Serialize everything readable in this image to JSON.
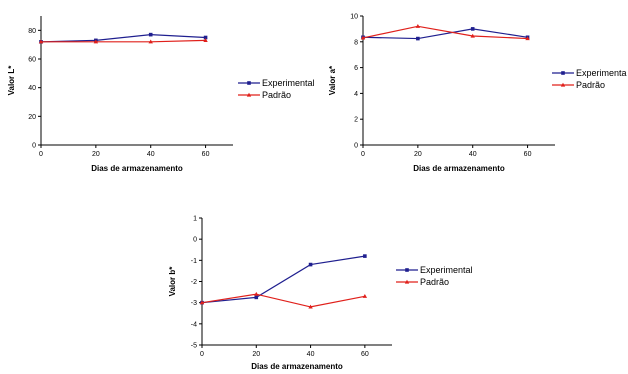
{
  "colors": {
    "experimental": "#1f1f8f",
    "padrao": "#e0201b",
    "axis": "#000000"
  },
  "chart_data": [
    {
      "type": "line",
      "xlabel": "Dias de armazenamento",
      "ylabel": "Valor L*",
      "xlim": [
        0,
        70
      ],
      "ylim": [
        0,
        90
      ],
      "xticks": [
        0,
        20,
        40,
        60
      ],
      "yticks": [
        0,
        20,
        40,
        60,
        80
      ],
      "x": [
        0,
        20,
        40,
        60
      ],
      "series": [
        {
          "name": "Experimental",
          "values": [
            72,
            73,
            77,
            75
          ],
          "marker": "square"
        },
        {
          "name": "Padrão",
          "values": [
            72,
            72,
            72,
            73
          ],
          "marker": "triangle"
        }
      ],
      "legend": "right"
    },
    {
      "type": "line",
      "xlabel": "Dias de armazenamento",
      "ylabel": "Valor a*",
      "xlim": [
        0,
        70
      ],
      "ylim": [
        0,
        10
      ],
      "xticks": [
        0,
        20,
        40,
        60
      ],
      "yticks": [
        0,
        2,
        4,
        6,
        8,
        10
      ],
      "x": [
        0,
        20,
        40,
        60
      ],
      "series": [
        {
          "name": "Experimenta",
          "values": [
            8.35,
            8.25,
            9.0,
            8.35
          ],
          "marker": "square"
        },
        {
          "name": "Padrão",
          "values": [
            8.3,
            9.2,
            8.45,
            8.25
          ],
          "marker": "triangle"
        }
      ],
      "legend": "right"
    },
    {
      "type": "line",
      "xlabel": "Dias de armazenamento",
      "ylabel": "Valor b*",
      "xlim": [
        0,
        70
      ],
      "ylim": [
        -5,
        1
      ],
      "xticks": [
        0,
        20,
        40,
        60
      ],
      "yticks": [
        1,
        0,
        -1,
        -2,
        -3,
        -4,
        -5
      ],
      "x": [
        0,
        20,
        40,
        60
      ],
      "series": [
        {
          "name": "Experimental",
          "values": [
            -3.0,
            -2.75,
            -1.2,
            -0.8
          ],
          "marker": "square"
        },
        {
          "name": "Padrão",
          "values": [
            -3.0,
            -2.6,
            -3.2,
            -2.7
          ],
          "marker": "triangle"
        }
      ],
      "legend": "right"
    }
  ]
}
